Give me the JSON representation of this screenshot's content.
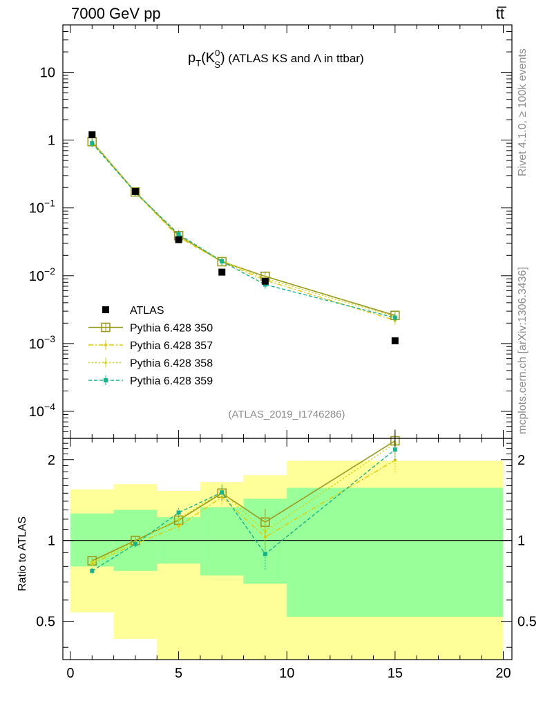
{
  "header": {
    "left": "7000 GeV pp",
    "right": "tt̅"
  },
  "side_labels": {
    "rivet": "Rivet 4.1.0, ≥ 100k events",
    "mcplots": "mcplots.cern.ch [arXiv:1306.3436]"
  },
  "colors": {
    "atlas": "#000000",
    "p350": "#9a9a1e",
    "p357": "#e6c800",
    "p358": "#d4d400",
    "p359": "#14b48c",
    "band_outer": "#ffff99",
    "band_inner": "#99ff99",
    "watermark": "#8c8c8c"
  },
  "chart_data": [
    {
      "type": "scatter",
      "title": "p_T(K^0_S) (ATLAS KS and Λ in ttbar)",
      "title_parts": {
        "p": "p",
        "sub_t": "T",
        "open": "(K",
        "sup": "0",
        "sub_s": "S",
        "close": ")",
        "rest": " (ATLAS KS and Λ in ttbar)"
      },
      "watermark": "(ATLAS_2019_I1746286)",
      "yscale": "log",
      "xlim": [
        -0.35,
        20.4
      ],
      "ylim": [
        4e-05,
        50
      ],
      "ytick_labels": [
        {
          "value": 10,
          "base": "10",
          "exp": ""
        },
        {
          "value": 1,
          "base": "1",
          "exp": ""
        },
        {
          "value": 0.1,
          "base": "10",
          "exp": "−1"
        },
        {
          "value": 0.01,
          "base": "10",
          "exp": "−2"
        },
        {
          "value": 0.001,
          "base": "10",
          "exp": "−3"
        },
        {
          "value": 0.0001,
          "base": "10",
          "exp": "−4"
        }
      ],
      "legend_position": "bottom-left",
      "series": [
        {
          "name": "ATLAS",
          "style": "data",
          "x": [
            1,
            3,
            5,
            7,
            9,
            15
          ],
          "y": [
            1.2,
            0.175,
            0.034,
            0.0113,
            0.0083,
            0.0011
          ]
        },
        {
          "name": "Pythia 6.428 350",
          "style": "solid-open-square",
          "x": [
            1,
            3,
            5,
            7,
            9,
            15
          ],
          "y": [
            0.95,
            0.172,
            0.039,
            0.0161,
            0.0098,
            0.0026
          ]
        },
        {
          "name": "Pythia 6.428 357",
          "style": "dashdot-star",
          "x": [
            1,
            3,
            5,
            7,
            9,
            15
          ],
          "y": [
            0.93,
            0.168,
            0.037,
            0.0161,
            0.0086,
            0.0022
          ]
        },
        {
          "name": "Pythia 6.428 358",
          "style": "dotted-dot",
          "x": [
            1,
            3,
            5,
            7,
            9,
            15
          ],
          "y": [
            0.94,
            0.172,
            0.039,
            0.0167,
            0.0091,
            0.0025
          ]
        },
        {
          "name": "Pythia 6.428 359",
          "style": "dashed-filled-square",
          "x": [
            1,
            3,
            5,
            7,
            9,
            15
          ],
          "y": [
            0.9,
            0.17,
            0.041,
            0.0163,
            0.0074,
            0.0024
          ]
        }
      ]
    },
    {
      "type": "line",
      "ylabel": "Ratio to ATLAS",
      "yscale": "log",
      "xlim": [
        -0.35,
        20.4
      ],
      "ylim": [
        0.36,
        2.4
      ],
      "xticks": [
        0,
        5,
        10,
        15,
        20
      ],
      "yticks": [
        0.5,
        1,
        2
      ],
      "reference_line": 1,
      "bands": {
        "inner": [
          {
            "x0": 0,
            "x1": 2,
            "lo": 0.8,
            "hi": 1.26
          },
          {
            "x0": 2,
            "x1": 4,
            "lo": 0.77,
            "hi": 1.3
          },
          {
            "x0": 4,
            "x1": 6,
            "lo": 0.82,
            "hi": 1.22
          },
          {
            "x0": 6,
            "x1": 8,
            "lo": 0.74,
            "hi": 1.33
          },
          {
            "x0": 8,
            "x1": 10,
            "lo": 0.69,
            "hi": 1.43
          },
          {
            "x0": 10,
            "x1": 20,
            "lo": 0.52,
            "hi": 1.57
          }
        ],
        "outer": [
          {
            "x0": 0,
            "x1": 2,
            "lo": 0.54,
            "hi": 1.55
          },
          {
            "x0": 2,
            "x1": 4,
            "lo": 0.43,
            "hi": 1.62
          },
          {
            "x0": 4,
            "x1": 6,
            "lo": 0.36,
            "hi": 1.53
          },
          {
            "x0": 6,
            "x1": 8,
            "lo": 0.36,
            "hi": 1.65
          },
          {
            "x0": 8,
            "x1": 10,
            "lo": 0.36,
            "hi": 1.75
          },
          {
            "x0": 10,
            "x1": 20,
            "lo": 0.36,
            "hi": 1.98
          }
        ]
      },
      "series": [
        {
          "name": "Pythia 6.428 350",
          "x": [
            1,
            3,
            5,
            7,
            9,
            15
          ],
          "y": [
            0.84,
            1.0,
            1.19,
            1.5,
            1.17,
            2.35
          ],
          "err": [
            0.02,
            0.03,
            0.05,
            0.1,
            0.14,
            0.25
          ]
        },
        {
          "name": "Pythia 6.428 357",
          "x": [
            1,
            3,
            5,
            7,
            9,
            15
          ],
          "y": [
            0.82,
            0.97,
            1.13,
            1.45,
            1.03,
            1.99
          ],
          "err": [
            0.02,
            0.03,
            0.05,
            0.1,
            0.14,
            0.2
          ]
        },
        {
          "name": "Pythia 6.428 358",
          "x": [
            1,
            3,
            5,
            7,
            9,
            15
          ],
          "y": [
            0.83,
            0.99,
            1.2,
            1.52,
            1.08,
            2.3
          ],
          "err": [
            0.02,
            0.03,
            0.05,
            0.1,
            0.14,
            0.22
          ]
        },
        {
          "name": "Pythia 6.428 359",
          "x": [
            1,
            3,
            5,
            7,
            9,
            15
          ],
          "y": [
            0.77,
            0.97,
            1.27,
            1.51,
            0.89,
            2.18
          ],
          "err": [
            0.02,
            0.03,
            0.05,
            0.1,
            0.11,
            0.2
          ]
        }
      ]
    }
  ]
}
